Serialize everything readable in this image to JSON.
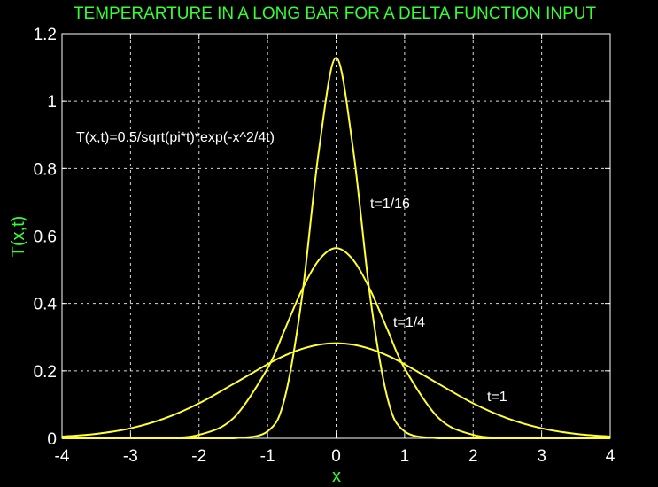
{
  "chart_data": {
    "type": "line",
    "title": "TEMPERARTURE IN A LONG BAR FOR A DELTA FUNCTION INPUT",
    "xlabel": "x",
    "ylabel": "T(x,t)",
    "xlim": [
      -4,
      4
    ],
    "ylim": [
      0,
      1.2
    ],
    "x_ticks": [
      -4,
      -3,
      -2,
      -1,
      0,
      1,
      2,
      3,
      4
    ],
    "x_tick_labels": [
      "-4",
      "-3",
      "-2",
      "-1",
      "0",
      "1",
      "2",
      "3",
      "4"
    ],
    "y_ticks": [
      0,
      0.2,
      0.4,
      0.6,
      0.8,
      1.0,
      1.2
    ],
    "y_tick_labels": [
      "0",
      "0.2",
      "0.4",
      "0.6",
      "0.8",
      "1",
      "1.2"
    ],
    "grid": true,
    "x": [
      -4,
      -3.5,
      -3,
      -2.5,
      -2,
      -1.5,
      -1,
      -0.75,
      -0.5,
      -0.25,
      0,
      0.25,
      0.5,
      0.75,
      1,
      1.5,
      2,
      2.5,
      3,
      3.5,
      4
    ],
    "series": [
      {
        "name": "t=1/16",
        "values": [
          0,
          0,
          0,
          0,
          0,
          0,
          0.0206,
          0.1192,
          0.4152,
          0.8553,
          1.1284,
          0.8553,
          0.4152,
          0.1192,
          0.0206,
          0,
          0,
          0,
          0,
          0,
          0
        ]
      },
      {
        "name": "t=1/4",
        "values": [
          0,
          0,
          0.0001,
          0.0011,
          0.0103,
          0.0595,
          0.2076,
          0.3222,
          0.4394,
          0.5289,
          0.5642,
          0.5289,
          0.4394,
          0.3222,
          0.2076,
          0.0595,
          0.0103,
          0.0011,
          0.0001,
          0,
          0
        ]
      },
      {
        "name": "t=1",
        "values": [
          0.0052,
          0.0132,
          0.0297,
          0.0592,
          0.1038,
          0.161,
          0.2197,
          0.2453,
          0.265,
          0.2777,
          0.2821,
          0.2777,
          0.265,
          0.2453,
          0.2197,
          0.161,
          0.1038,
          0.0592,
          0.0297,
          0.0132,
          0.0052
        ]
      }
    ],
    "annotations": [
      {
        "text": "T(x,t)=0.5/sqrt(pi*t)*exp(-x^2/4t)"
      },
      {
        "text": "t=1/16"
      },
      {
        "text": "t=1/4"
      },
      {
        "text": "t=1"
      }
    ]
  },
  "colors": {
    "background": "#000000",
    "series": "#ffff33",
    "title": "#33ff33",
    "axis": "#ffffff"
  }
}
